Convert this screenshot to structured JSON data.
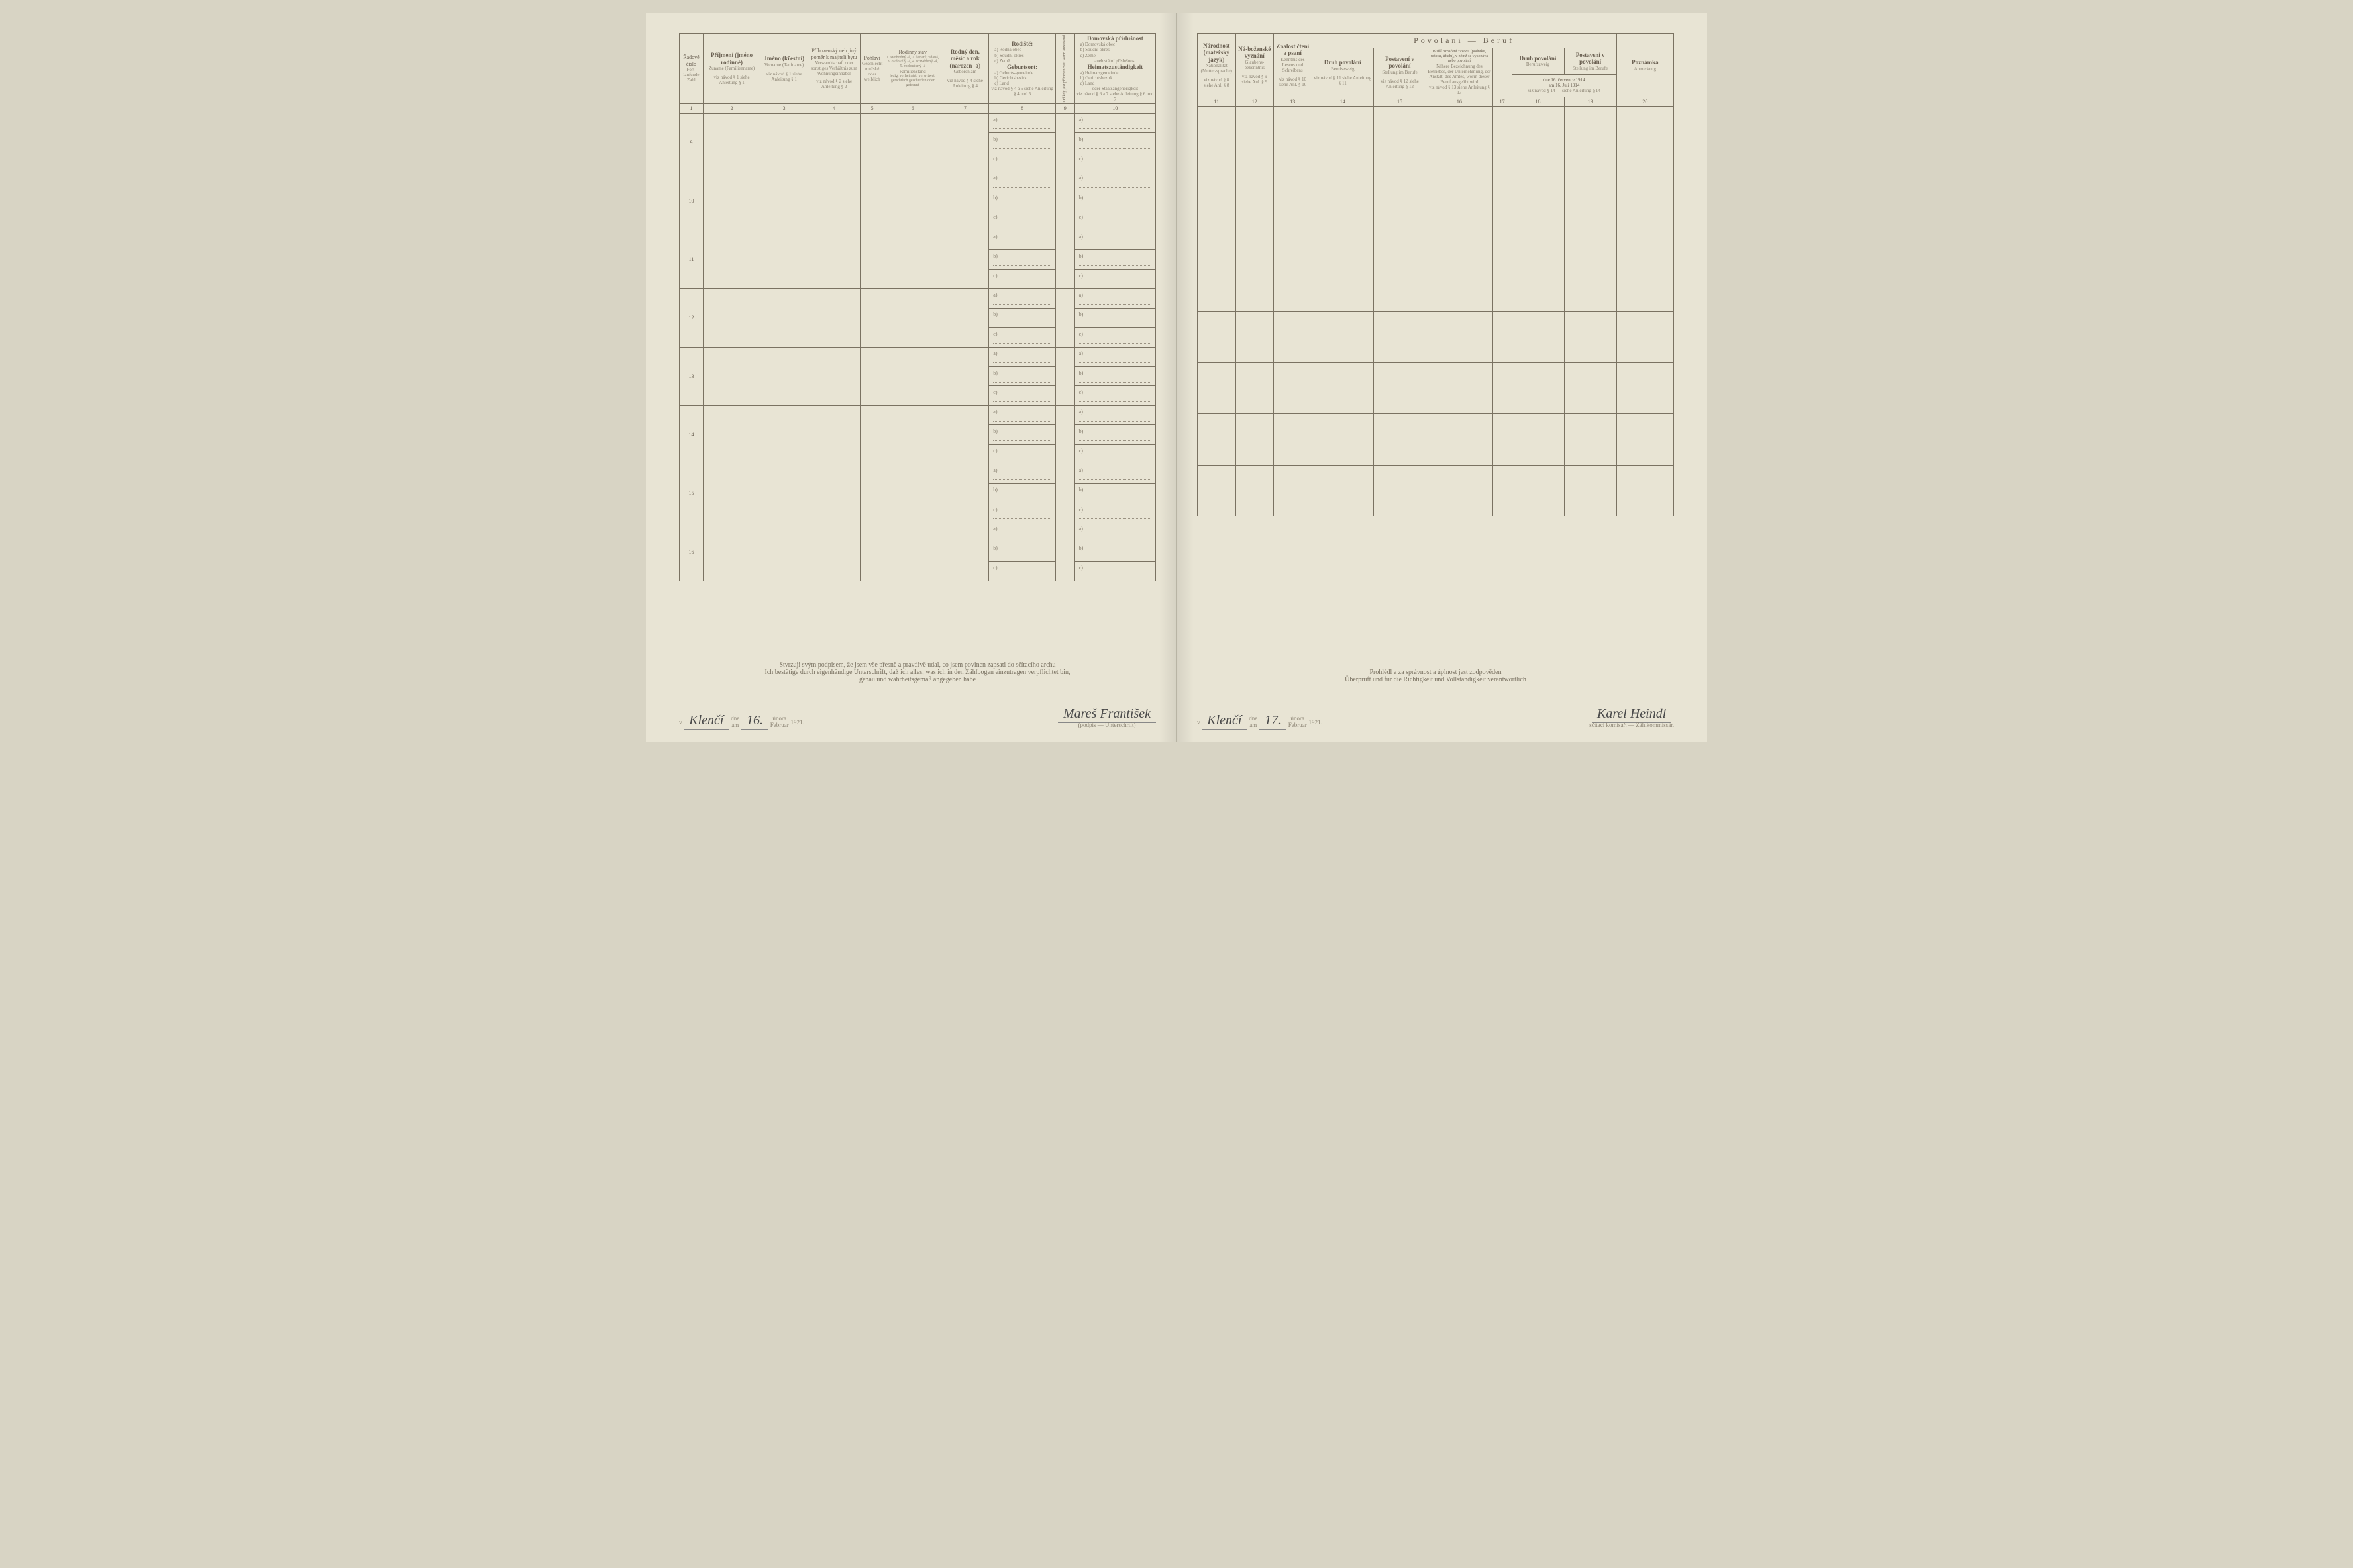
{
  "left": {
    "headers": {
      "c1": {
        "cz": "Řadové číslo",
        "de": "Fort-laufende Zahl"
      },
      "c2": {
        "cz": "Příjmení (jméno rodinné)",
        "de": "Zuname (Familienname)",
        "ref": "viz návod § 1\nsiehe Anleitung § 1"
      },
      "c3": {
        "cz": "Jméno (křestní)",
        "de": "Vorname (Taufname)",
        "ref": "viz návod § 1\nsiehe Anleitung § 1"
      },
      "c4": {
        "cz": "Příbuzenský neb jiný poměr k majiteli bytu",
        "de": "Verwandtschaft oder sonstiges Verhältnis zum Wohnungsinhaber",
        "ref": "viz návod § 2\nsiehe Anleitung § 2"
      },
      "c5": {
        "cz": "Pohlaví",
        "de": "Geschlecht",
        "sub": "mužské oder weiblich"
      },
      "c6": {
        "cz": "Rodinný stav",
        "de": "Familienstand",
        "sub": "1. svobodný -á, 2. ženatý, vdaná, 3. ovdovělý -á, 4. rozvedený -á, 5. rozloučený -á",
        "de2": "ledig, verheiratet, verwitwet, gerichtlich geschieden oder getrennt"
      },
      "c7": {
        "cz": "Rodný den, měsíc a rok (narozen -a)",
        "de": "Geboren am",
        "ref": "viz návod § 4\nsiehe Anleitung § 4"
      },
      "c8": {
        "cz": "Rodiště:",
        "list": "a) Rodná obec\nb) Soudní okres\nc) Země",
        "de": "Geburtsort:",
        "delist": "a) Geburts-gemeinde\nb) Gerichtsbezirk\nc) Land",
        "ref": "viz návod § 4 a 5\nsiehe Anleitung § 4 und 5"
      },
      "c9": {
        "cz": "Od kdy jest přítomen",
        "de": "Seit wann anwesend"
      },
      "c10": {
        "cz": "Domovská příslušnost",
        "list": "a) Domovská obec\nb) Soudní okres\nc) Země",
        "cz2": "aneb státní příslušnost",
        "de": "Heimatszuständigkeit",
        "delist": "a) Heimatsgemeinde\nb) Gerichtsbezirk\nc) Land",
        "de2": "oder Staatsangehörigkeit",
        "ref": "viz návod § 6 a 7\nsiehe Anleitung § 6 und 7"
      }
    },
    "colnums": [
      "1",
      "2",
      "3",
      "4",
      "5",
      "6",
      "7",
      "8",
      "9",
      "10"
    ],
    "rownums": [
      "9",
      "10",
      "11",
      "12",
      "13",
      "14",
      "15",
      "16"
    ],
    "sublabels": [
      "a)",
      "b)",
      "c)"
    ],
    "footer": {
      "l1": "Stvrzuji svým podpisem, že jsem vše přesně a pravdivě udal, co jsem povinen zapsati do sčítacího archu",
      "l2": "Ich bestätige durch eigenhändige Unterschrift, daß ich alles, was ich in den Zählbogen einzutragen verpflichtet bin,",
      "l3": "genau und wahrheitsgemäß angegeben habe",
      "place_prefix": "v",
      "place": "Klenčí",
      "date_prefix": "dne\nam",
      "day": "16.",
      "month": "února\nFebruar",
      "year": "1921.",
      "sig": "Mareš František",
      "sig_sub": "(podpis — Unterschrift)"
    }
  },
  "right": {
    "headers": {
      "c11": {
        "cz": "Národnost (mateřský jazyk)",
        "de": "Nationalität (Mutter-sprache)",
        "ref": "viz návod § 8\nsiehe Anl. § 8"
      },
      "c12": {
        "cz": "Ná-boženské vyznání",
        "de": "Glaubens-bekenntnis",
        "ref": "viz návod § 9\nsiehe Anl. § 9"
      },
      "c13": {
        "cz": "Znalost čtení a psaní",
        "de": "Kenntnis des Lesens und Schreibens",
        "ref": "viz návod § 10\nsiehe Anl. § 10"
      },
      "group": {
        "cz": "Povolání — Beruf"
      },
      "c14": {
        "cz": "Druh povolání",
        "de": "Berufszweig",
        "ref": "viz návod § 11\nsiehe Anleitung § 11"
      },
      "c15": {
        "cz": "Postavení v povolání",
        "de": "Stellung im Berufe",
        "ref": "viz návod § 12\nsiehe Anleitung § 12"
      },
      "c16": {
        "cz": "Bližší označení závodu (podniku, ústavu, úřadu), v němž se vykonává nebo povolání",
        "de": "Nähere Bezeichnung des Betriebes, der Unternehmung, der Anstalt, des Amtes, worin dieser Beruf ausgeübt wird",
        "ref": "viz návod § 13\nsiehe Anleitung § 13"
      },
      "c17": {
        "cz": "",
        "sub": ""
      },
      "c18": {
        "cz": "Druh povolání",
        "de": "Berufszweig"
      },
      "c19": {
        "cz": "Postavení v povolání",
        "de": "Stellung im Berufe"
      },
      "date_small": "dne 16. července 1914\nam 16. Juli 1914",
      "ref1819": "viz návod § 14 — siehe Anleitung § 14",
      "c20": {
        "cz": "Poznámka",
        "de": "Anmerkung"
      }
    },
    "colnums": [
      "11",
      "12",
      "13",
      "14",
      "15",
      "16",
      "17",
      "18",
      "19",
      "20"
    ],
    "footer": {
      "l1": "Prohlédl a za správnost a úplnost jest zodpověden",
      "l2": "Überprüft und für die Richtigkeit und Vollständigkeit verantwortlich",
      "place_prefix": "v",
      "place": "Klenčí",
      "date_prefix": "dne\nam",
      "day": "17.",
      "month": "února\nFebruar",
      "year": "1921.",
      "sig": "Karel Heindl",
      "sig_sub": "sčítací komisař. — Zählkommissär."
    }
  }
}
